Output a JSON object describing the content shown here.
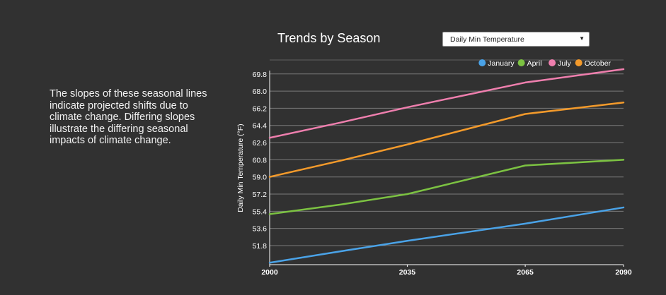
{
  "description": "The slopes of these seasonal lines indicate projected shifts due to climate change. Differing slopes illustrate the differing seasonal impacts of climate change.",
  "selector": {
    "selected": "Daily Min Temperature",
    "arrow_icon": "▼"
  },
  "chart_data": {
    "type": "line",
    "title": "Trends by Season",
    "xlabel": "",
    "ylabel": "Daily Min Temperature (°F)",
    "x": [
      2000,
      2018,
      2035,
      2050,
      2065,
      2090
    ],
    "x_ticks": [
      "2000",
      "2035",
      "2065",
      "2090"
    ],
    "y_ticks": [
      "51.8",
      "53.6",
      "55.4",
      "57.2",
      "59.0",
      "60.8",
      "62.6",
      "64.4",
      "66.2",
      "68.0",
      "69.8"
    ],
    "xlim": [
      2000,
      2090
    ],
    "ylim": [
      49.8,
      70.3
    ],
    "grid": true,
    "legend_position": "top-right",
    "series": [
      {
        "name": "January",
        "color": "#4aa3e8",
        "values": [
          50.0,
          51.2,
          52.3,
          53.2,
          54.1,
          55.8
        ]
      },
      {
        "name": "April",
        "color": "#7cc242",
        "values": [
          55.1,
          56.1,
          57.2,
          58.7,
          60.2,
          60.8
        ]
      },
      {
        "name": "July",
        "color": "#ef7fae",
        "values": [
          63.1,
          64.7,
          66.3,
          67.6,
          68.9,
          70.3
        ]
      },
      {
        "name": "October",
        "color": "#f39a2b",
        "values": [
          59.0,
          60.7,
          62.4,
          64.0,
          65.6,
          66.8
        ]
      }
    ]
  }
}
